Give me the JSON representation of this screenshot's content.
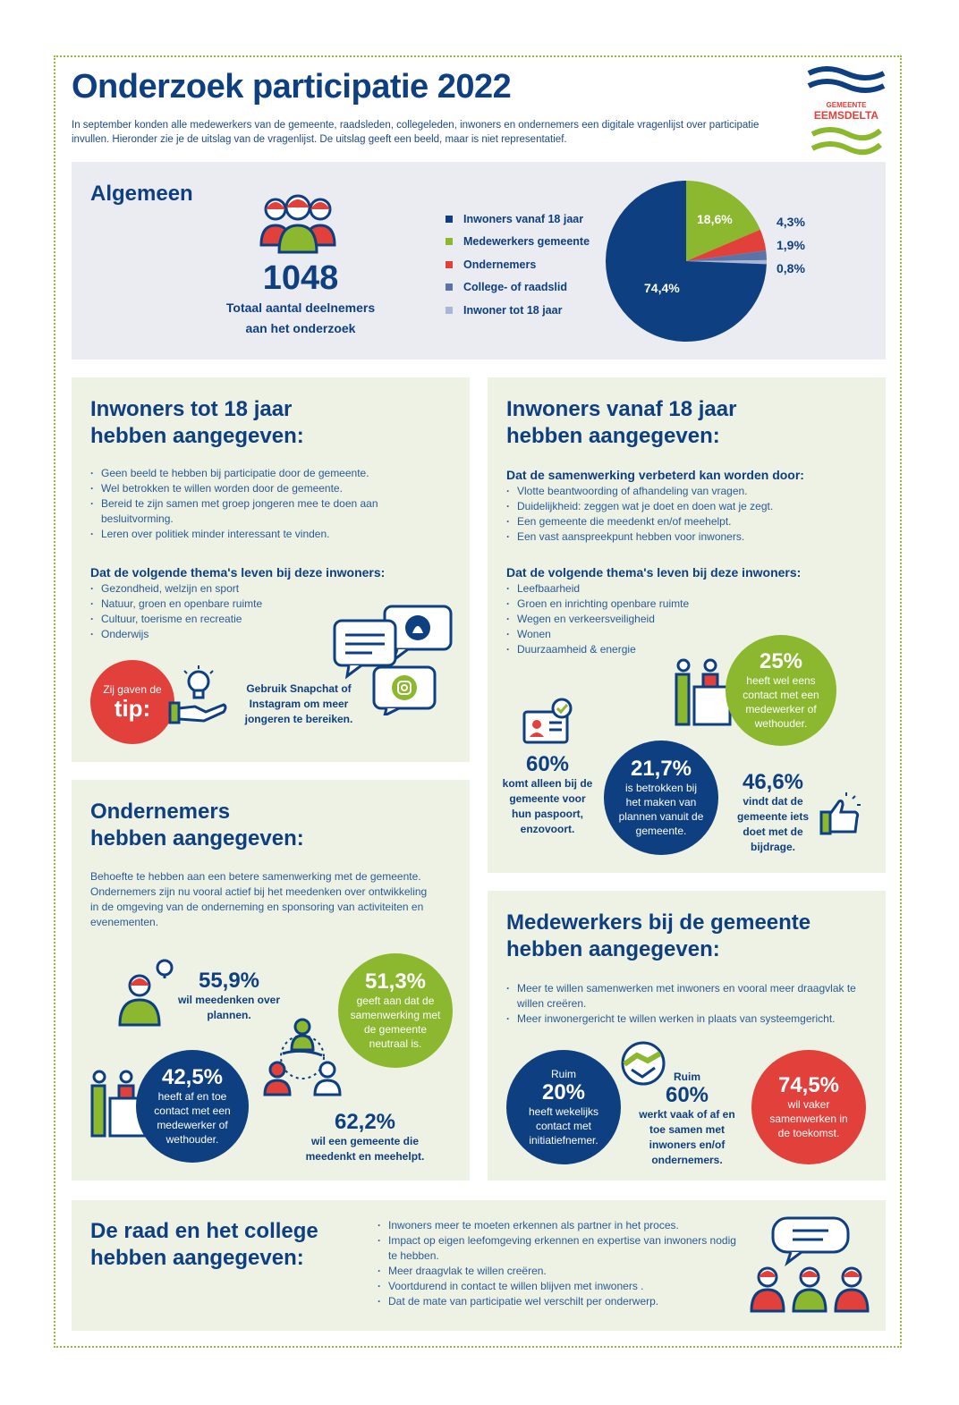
{
  "header": {
    "title": "Onderzoek participatie 2022",
    "intro": "In september konden alle medewerkers van de gemeente, raadsleden, collegeleden, inwoners en ondernemers een digitale vragenlijst over participatie invullen. Hieronder zie je de uitslag van de vragenlijst. De uitslag geeft een beeld, maar is niet representatief.",
    "logo_small": "GEMEENTE",
    "logo_big": "EEMSDELTA"
  },
  "algemeen": {
    "title": "Algemeen",
    "total": "1048",
    "total_label_1": "Totaal aantal deelnemers",
    "total_label_2": "aan het onderzoek",
    "legend": [
      {
        "label": "Inwoners vanaf 18 jaar",
        "color": "#0e3f80",
        "value": 74.4,
        "text": "74,4%"
      },
      {
        "label": "Medewerkers gemeente",
        "color": "#8bb82e",
        "value": 18.6,
        "text": "18,6%"
      },
      {
        "label": "Ondernemers",
        "color": "#e2403a",
        "value": 4.3,
        "text": "4,3%"
      },
      {
        "label": "College- of raadslid",
        "color": "#5a74a8",
        "value": 1.9,
        "text": "1,9%"
      },
      {
        "label": "Inwoner tot 18 jaar",
        "color": "#a9b6d6",
        "value": 0.8,
        "text": "0,8%"
      }
    ]
  },
  "jong": {
    "title_1": "Inwoners tot 18 jaar",
    "title_2": "hebben aangegeven:",
    "items": [
      "Geen beeld te hebben bij participatie door de gemeente.",
      "Wel betrokken te willen worden door de gemeente.",
      "Bereid te zijn samen met groep jongeren mee te doen aan besluitvorming.",
      "Leren over politiek minder interessant te vinden."
    ],
    "themes_title": "Dat de volgende thema's leven bij deze inwoners:",
    "themes": [
      "Gezondheid, welzijn en sport",
      "Natuur, groen en openbare ruimte",
      "Cultuur, toerisme en recreatie",
      "Onderwijs"
    ],
    "tip_small": "Zij gaven de",
    "tip_big": "tip:",
    "tip_text": "Gebruik Snapchat of Instagram om meer jongeren te bereiken."
  },
  "volw": {
    "title_1": "Inwoners vanaf 18 jaar",
    "title_2": "hebben aangegeven:",
    "coop_title": "Dat de samenwerking verbeterd kan worden door:",
    "coop": [
      "Vlotte beantwoording of afhandeling van vragen.",
      "Duidelijkheid: zeggen wat je doet en doen wat je zegt.",
      "Een gemeente die meedenkt en/of meehelpt.",
      "Een vast aanspreekpunt hebben voor inwoners."
    ],
    "themes_title": "Dat de volgende thema's leven bij deze inwoners:",
    "themes": [
      "Leefbaarheid",
      "Groen en inrichting openbare ruimte",
      "Wegen en verkeersveiligheid",
      "Wonen",
      "Duurzaamheid & energie"
    ],
    "s25": {
      "value": "25%",
      "text": "heeft wel eens contact met een medewerker of wethouder."
    },
    "s60": {
      "value": "60%",
      "text": "komt alleen bij de gemeente voor hun paspoort, enzovoort."
    },
    "s217": {
      "value": "21,7%",
      "text": "is betrokken bij het maken van plannen vanuit de gemeente."
    },
    "s466": {
      "value": "46,6%",
      "text": "vindt dat de gemeente iets doet met de bijdrage."
    }
  },
  "ondern": {
    "title_1": "Ondernemers",
    "title_2": "hebben aangegeven:",
    "text": "Behoefte te hebben aan een betere samenwerking met de gemeente. Ondernemers zijn nu vooral actief bij het meedenken over ontwikkeling in de omgeving van de onderneming en sponsoring van activiteiten en evenementen.",
    "s559": {
      "value": "55,9%",
      "text": "wil meedenken over plannen."
    },
    "s513": {
      "value": "51,3%",
      "text": "geeft aan dat de samenwerking met de gemeente neutraal is."
    },
    "s425": {
      "value": "42,5%",
      "text": "heeft af en toe contact met een medewerker of wethouder."
    },
    "s622": {
      "value": "62,2%",
      "text": "wil een gemeente die meedenkt en meehelpt."
    }
  },
  "medew": {
    "title_1": "Medewerkers bij de gemeente",
    "title_2": "hebben aangegeven:",
    "items": [
      "Meer te willen samenwerken met inwoners en vooral meer draagvlak te willen creëren.",
      "Meer inwonergericht te willen werken in plaats van systeemgericht."
    ],
    "s20": {
      "pre": "Ruim",
      "value": "20%",
      "text": "heeft wekelijks contact met initiatiefnemer."
    },
    "s60": {
      "pre": "Ruim",
      "value": "60%",
      "text": "werkt vaak of af en toe samen met inwoners en/of ondernemers."
    },
    "s745": {
      "value": "74,5%",
      "text": "wil vaker samenwerken in de toekomst."
    }
  },
  "raad": {
    "title_1": "De raad en het college",
    "title_2": "hebben aangegeven:",
    "items": [
      "Inwoners meer te moeten erkennen als partner in het proces.",
      "Impact op eigen leefomgeving erkennen en expertise van inwoners nodig te hebben.",
      "Meer draagvlak te willen creëren.",
      "Voortdurend in contact te willen blijven met inwoners .",
      "Dat de mate van participatie wel verschilt per onderwerp."
    ]
  }
}
